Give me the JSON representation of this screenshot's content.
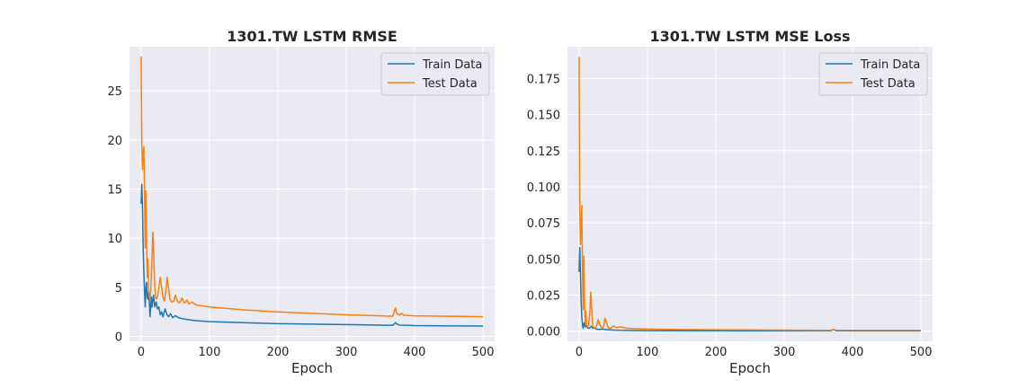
{
  "chart_data": [
    {
      "type": "line",
      "title": "1301.TW  LSTM RMSE",
      "xlabel": "Epoch",
      "ylabel": "",
      "xlim": [
        -17,
        517
      ],
      "ylim": [
        -0.5,
        29.5
      ],
      "xticks": [
        0,
        100,
        200,
        300,
        400,
        500
      ],
      "yticks": [
        0,
        5,
        10,
        15,
        20,
        25
      ],
      "ytick_labels": [
        "0",
        "5",
        "10",
        "15",
        "20",
        "25"
      ],
      "grid": true,
      "legend": "top-right",
      "series": [
        {
          "name": "Train Data",
          "color": "#1f77b4",
          "points": [
            [
              0,
              13.5
            ],
            [
              1,
              15.5
            ],
            [
              2,
              13.0
            ],
            [
              3,
              9.0
            ],
            [
              4,
              6.5
            ],
            [
              5,
              4.5
            ],
            [
              6,
              3.0
            ],
            [
              7,
              5.0
            ],
            [
              8,
              5.5
            ],
            [
              9,
              4.0
            ],
            [
              10,
              3.8
            ],
            [
              11,
              4.5
            ],
            [
              12,
              3.5
            ],
            [
              13,
              2.0
            ],
            [
              14,
              3.0
            ],
            [
              15,
              4.0
            ],
            [
              16,
              3.0
            ],
            [
              18,
              4.2
            ],
            [
              20,
              3.0
            ],
            [
              22,
              3.5
            ],
            [
              24,
              2.8
            ],
            [
              26,
              3.0
            ],
            [
              28,
              2.2
            ],
            [
              30,
              2.5
            ],
            [
              32,
              2.0
            ],
            [
              35,
              2.8
            ],
            [
              38,
              2.2
            ],
            [
              40,
              2.0
            ],
            [
              43,
              2.3
            ],
            [
              46,
              1.9
            ],
            [
              50,
              2.1
            ],
            [
              55,
              1.9
            ],
            [
              60,
              1.8
            ],
            [
              70,
              1.7
            ],
            [
              80,
              1.6
            ],
            [
              100,
              1.5
            ],
            [
              150,
              1.4
            ],
            [
              200,
              1.3
            ],
            [
              250,
              1.25
            ],
            [
              300,
              1.2
            ],
            [
              350,
              1.15
            ],
            [
              368,
              1.12
            ],
            [
              372,
              1.4
            ],
            [
              374,
              1.25
            ],
            [
              378,
              1.15
            ],
            [
              400,
              1.1
            ],
            [
              450,
              1.07
            ],
            [
              500,
              1.05
            ]
          ]
        },
        {
          "name": "Test Data",
          "color": "#ff7f0e",
          "points": [
            [
              0,
              28.5
            ],
            [
              1,
              19.3
            ],
            [
              2,
              17.0
            ],
            [
              3,
              18.8
            ],
            [
              4,
              19.3
            ],
            [
              5,
              15.0
            ],
            [
              6,
              9.0
            ],
            [
              7,
              14.8
            ],
            [
              8,
              10.0
            ],
            [
              9,
              6.0
            ],
            [
              10,
              7.9
            ],
            [
              11,
              5.0
            ],
            [
              12,
              4.0
            ],
            [
              13,
              3.8
            ],
            [
              14,
              4.5
            ],
            [
              15,
              6.5
            ],
            [
              16,
              8.0
            ],
            [
              17,
              10.6
            ],
            [
              18,
              9.5
            ],
            [
              19,
              7.0
            ],
            [
              20,
              5.0
            ],
            [
              21,
              4.0
            ],
            [
              22,
              3.8
            ],
            [
              24,
              4.0
            ],
            [
              26,
              5.0
            ],
            [
              28,
              6.0
            ],
            [
              30,
              5.0
            ],
            [
              32,
              4.0
            ],
            [
              34,
              3.6
            ],
            [
              36,
              4.5
            ],
            [
              38,
              6.0
            ],
            [
              40,
              5.0
            ],
            [
              42,
              3.8
            ],
            [
              45,
              3.5
            ],
            [
              48,
              3.6
            ],
            [
              50,
              4.2
            ],
            [
              53,
              3.6
            ],
            [
              56,
              3.4
            ],
            [
              60,
              3.9
            ],
            [
              63,
              3.4
            ],
            [
              67,
              3.7
            ],
            [
              70,
              3.3
            ],
            [
              75,
              3.5
            ],
            [
              80,
              3.2
            ],
            [
              90,
              3.1
            ],
            [
              100,
              3.0
            ],
            [
              150,
              2.7
            ],
            [
              200,
              2.5
            ],
            [
              250,
              2.35
            ],
            [
              300,
              2.2
            ],
            [
              350,
              2.1
            ],
            [
              368,
              2.05
            ],
            [
              372,
              2.9
            ],
            [
              374,
              2.3
            ],
            [
              378,
              2.2
            ],
            [
              381,
              2.35
            ],
            [
              384,
              2.15
            ],
            [
              400,
              2.1
            ],
            [
              450,
              2.05
            ],
            [
              500,
              2.0
            ]
          ]
        }
      ]
    },
    {
      "type": "line",
      "title": "1301.TW  LSTM MSE Loss",
      "xlabel": "Epoch",
      "ylabel": "",
      "xlim": [
        -17,
        517
      ],
      "ylim": [
        -0.007,
        0.197
      ],
      "xticks": [
        0,
        100,
        200,
        300,
        400,
        500
      ],
      "yticks": [
        0,
        0.025,
        0.05,
        0.075,
        0.1,
        0.125,
        0.15,
        0.175
      ],
      "ytick_labels": [
        "0.000",
        "0.025",
        "0.050",
        "0.075",
        "0.100",
        "0.125",
        "0.150",
        "0.175"
      ],
      "grid": true,
      "legend": "top-right",
      "series": [
        {
          "name": "Train Data",
          "color": "#1f77b4",
          "points": [
            [
              0,
              0.041
            ],
            [
              1,
              0.058
            ],
            [
              2,
              0.04
            ],
            [
              3,
              0.02
            ],
            [
              4,
              0.01
            ],
            [
              5,
              0.004
            ],
            [
              6,
              0.002
            ],
            [
              7,
              0.005
            ],
            [
              8,
              0.006
            ],
            [
              9,
              0.003
            ],
            [
              10,
              0.0035
            ],
            [
              12,
              0.0025
            ],
            [
              14,
              0.002
            ],
            [
              16,
              0.0025
            ],
            [
              18,
              0.0035
            ],
            [
              20,
              0.002
            ],
            [
              22,
              0.0025
            ],
            [
              25,
              0.0015
            ],
            [
              30,
              0.0012
            ],
            [
              35,
              0.0015
            ],
            [
              40,
              0.001
            ],
            [
              50,
              0.0008
            ],
            [
              60,
              0.0006
            ],
            [
              80,
              0.0005
            ],
            [
              100,
              0.0004
            ],
            [
              200,
              0.0003
            ],
            [
              300,
              0.00025
            ],
            [
              368,
              0.0002
            ],
            [
              372,
              0.0012
            ],
            [
              376,
              0.0003
            ],
            [
              400,
              0.0002
            ],
            [
              500,
              0.0002
            ]
          ]
        },
        {
          "name": "Test Data",
          "color": "#ff7f0e",
          "points": [
            [
              0,
              0.19
            ],
            [
              1,
              0.085
            ],
            [
              2,
              0.06
            ],
            [
              3,
              0.075
            ],
            [
              4,
              0.087
            ],
            [
              5,
              0.04
            ],
            [
              6,
              0.015
            ],
            [
              7,
              0.052
            ],
            [
              8,
              0.02
            ],
            [
              9,
              0.006
            ],
            [
              10,
              0.014
            ],
            [
              11,
              0.004
            ],
            [
              12,
              0.003
            ],
            [
              14,
              0.004
            ],
            [
              15,
              0.009
            ],
            [
              16,
              0.015
            ],
            [
              17,
              0.027
            ],
            [
              18,
              0.02
            ],
            [
              19,
              0.01
            ],
            [
              20,
              0.004
            ],
            [
              22,
              0.002
            ],
            [
              25,
              0.003
            ],
            [
              28,
              0.008
            ],
            [
              30,
              0.005
            ],
            [
              33,
              0.002
            ],
            [
              36,
              0.0035
            ],
            [
              38,
              0.009
            ],
            [
              40,
              0.006
            ],
            [
              43,
              0.002
            ],
            [
              46,
              0.002
            ],
            [
              50,
              0.0035
            ],
            [
              55,
              0.0025
            ],
            [
              60,
              0.003
            ],
            [
              70,
              0.002
            ],
            [
              80,
              0.0018
            ],
            [
              100,
              0.0015
            ],
            [
              150,
              0.0012
            ],
            [
              200,
              0.001
            ],
            [
              250,
              0.0009
            ],
            [
              300,
              0.0008
            ],
            [
              368,
              0.0006
            ],
            [
              372,
              0.0012
            ],
            [
              376,
              0.0007
            ],
            [
              400,
              0.0006
            ],
            [
              500,
              0.0006
            ]
          ]
        }
      ]
    }
  ]
}
